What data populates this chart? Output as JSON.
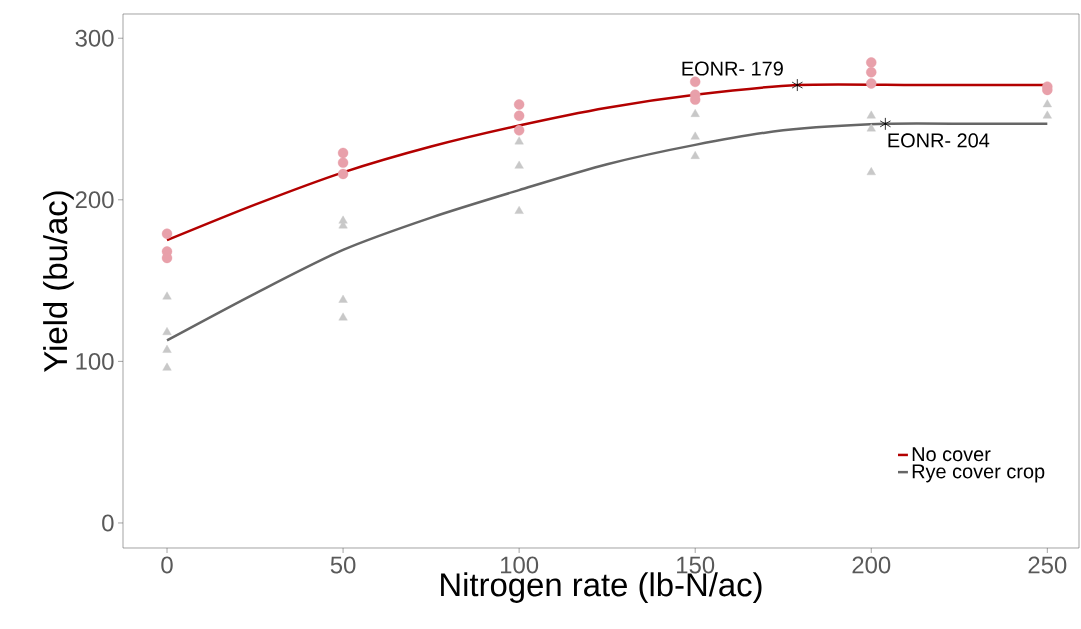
{
  "chart_data": {
    "type": "scatter",
    "xlabel": "Nitrogen rate (lb-N/ac)",
    "ylabel": "Yield (bu/ac)",
    "xlim": [
      -12.5,
      259
    ],
    "ylim": [
      -15.5,
      315
    ],
    "xticks": [
      0,
      50,
      100,
      150,
      200,
      250
    ],
    "yticks": [
      0,
      100,
      200,
      300
    ],
    "grid": false,
    "legend": "bottom right",
    "annotations": [
      {
        "text": "EONR- 179",
        "x": 179,
        "y": 271
      },
      {
        "text": "EONR- 204",
        "x": 204,
        "y": 247
      }
    ],
    "series": [
      {
        "marker": "triangle",
        "color": "#c8c8c8",
        "x": [
          0,
          0,
          0,
          0,
          50,
          50,
          50,
          50,
          100,
          100,
          100,
          150,
          150,
          150,
          200,
          200,
          200,
          250,
          250
        ],
        "values": [
          140,
          118,
          107,
          96,
          187,
          184,
          138,
          127,
          236,
          221,
          193,
          253,
          239,
          227,
          252,
          244,
          217,
          259,
          252
        ]
      },
      {
        "marker": "circle",
        "color": "#e8a0aa",
        "x": [
          0,
          0,
          0,
          50,
          50,
          50,
          100,
          100,
          100,
          150,
          150,
          150,
          200,
          200,
          200,
          250,
          250
        ],
        "values": [
          179,
          168,
          164,
          229,
          223,
          216,
          259,
          252,
          243,
          273,
          265,
          262,
          285,
          279,
          272,
          270,
          268
        ]
      },
      {
        "type": "line",
        "name": "No cover",
        "color": "#b30000",
        "marker": "none",
        "line_style": "solid",
        "x": [
          0,
          25,
          50,
          75,
          100,
          125,
          150,
          179,
          215,
          250
        ],
        "values": [
          175,
          197,
          217,
          233,
          246,
          257,
          265,
          271,
          271,
          271
        ]
      },
      {
        "type": "line",
        "name": "Rye cover crop",
        "color": "#666666",
        "marker": "none",
        "line_style": "solid",
        "x": [
          0,
          25,
          50,
          75,
          100,
          125,
          150,
          175,
          204,
          230,
          250
        ],
        "values": [
          113,
          142,
          169,
          189,
          206,
          222,
          234,
          243,
          247,
          247,
          247
        ]
      },
      {
        "marker": "cross",
        "color": "#000000",
        "x": [
          179,
          204
        ],
        "values": [
          271,
          247
        ]
      }
    ]
  }
}
